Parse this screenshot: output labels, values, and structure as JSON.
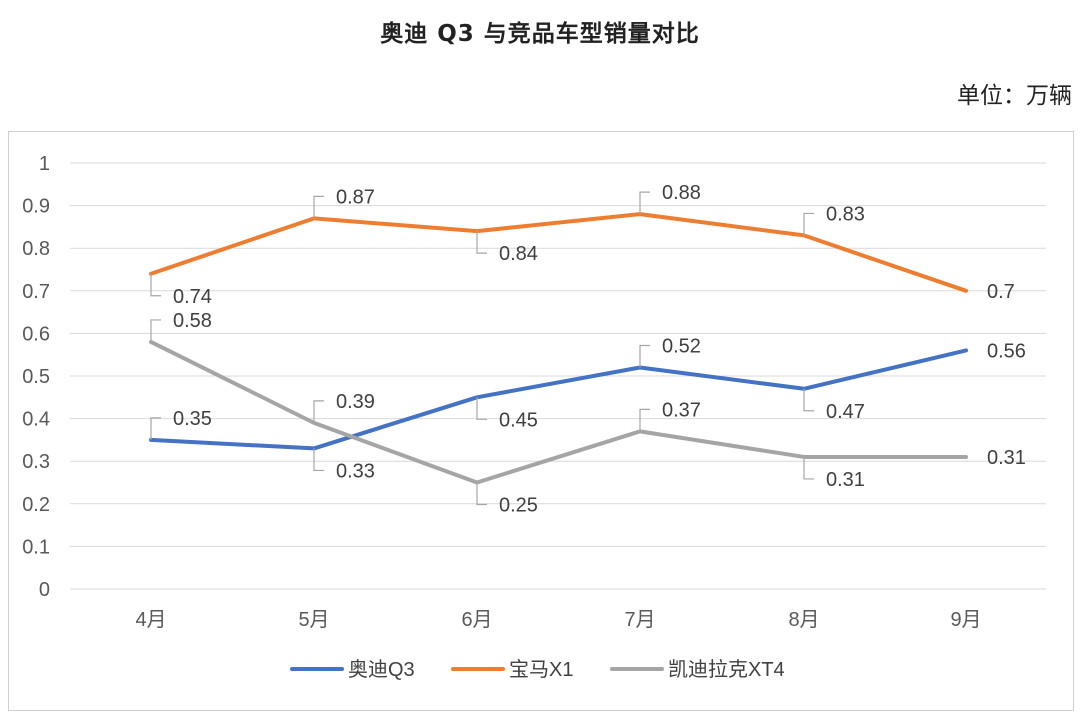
{
  "page": {
    "title": "奥迪 Q3 与竞品车型销量对比",
    "unit": "单位：万辆"
  },
  "chart_data": {
    "type": "line",
    "categories": [
      "4月",
      "5月",
      "6月",
      "7月",
      "8月",
      "9月"
    ],
    "series": [
      {
        "name": "奥迪Q3",
        "color": "#4472C4",
        "values": [
          0.35,
          0.33,
          0.45,
          0.52,
          0.47,
          0.56
        ]
      },
      {
        "name": "宝马X1",
        "color": "#ED7D31",
        "values": [
          0.74,
          0.87,
          0.84,
          0.88,
          0.83,
          0.7
        ]
      },
      {
        "name": "凯迪拉克XT4",
        "color": "#A5A5A5",
        "values": [
          0.58,
          0.39,
          0.25,
          0.37,
          0.31,
          0.31
        ]
      }
    ],
    "y_ticks": [
      "0",
      "0.1",
      "0.2",
      "0.3",
      "0.4",
      "0.5",
      "0.6",
      "0.7",
      "0.8",
      "0.9",
      "1"
    ],
    "ylim": [
      0,
      1
    ],
    "grid": true,
    "legend_position": "bottom",
    "data_labels": true
  }
}
